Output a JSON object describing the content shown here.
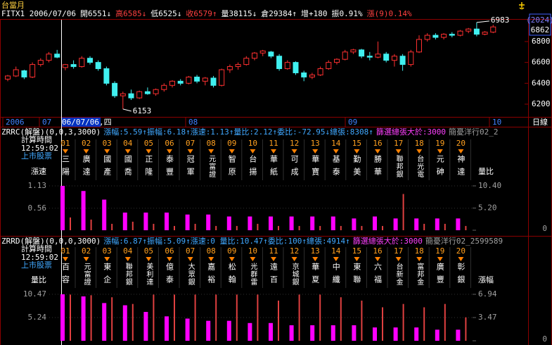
{
  "title": "台當月",
  "quote": [
    {
      "text": "FITX1 2006/07/06",
      "color": "#ffffff"
    },
    {
      "text": "開6551↓",
      "color": "#ffffff"
    },
    {
      "text": "高6585↓",
      "color": "#ff4040"
    },
    {
      "text": "低6525↓",
      "color": "#ffffff"
    },
    {
      "text": "收6579↑",
      "color": "#ff4040"
    },
    {
      "text": "量38115↓",
      "color": "#ffffff"
    },
    {
      "text": "倉29384↑",
      "color": "#ffffff"
    },
    {
      "text": "增+180",
      "color": "#ffffff"
    },
    {
      "text": "振0.91%",
      "color": "#ffffff"
    },
    {
      "text": "漲(9)0.14%",
      "color": "#ff4040"
    }
  ],
  "side_box": [
    "(2024)",
    "6862"
  ],
  "price_chart": {
    "ylim": [
      6085,
      7009
    ],
    "yticks": [
      6800,
      6600,
      6400,
      6200
    ],
    "up_color": "#ff3030",
    "down_color": "#40f0f0",
    "open": [
      6440,
      6470,
      6520,
      6460,
      6580,
      6620,
      6680,
      6551,
      6580,
      6560,
      6640,
      6600,
      6540,
      6400,
      6280,
      6300,
      6260,
      6320,
      6300,
      6340,
      6380,
      6420,
      6400,
      6460,
      6420,
      6450,
      6380,
      6530,
      6560,
      6580,
      6640,
      6690,
      6700,
      6660,
      6540,
      6600,
      6500,
      6460,
      6480,
      6540,
      6600,
      6630,
      6700,
      6720,
      6660,
      6650,
      6680,
      6620,
      6660,
      6580,
      6700,
      6820,
      6860,
      6840,
      6870,
      6860,
      6900,
      6920,
      6870,
      6890
    ],
    "high": [
      6480,
      6560,
      6530,
      6600,
      6640,
      6700,
      6720,
      6585,
      6620,
      6660,
      6660,
      6620,
      6560,
      6420,
      6320,
      6340,
      6330,
      6360,
      6350,
      6400,
      6430,
      6440,
      6470,
      6480,
      6460,
      6470,
      6540,
      6580,
      6600,
      6660,
      6700,
      6720,
      6710,
      6680,
      6620,
      6610,
      6520,
      6500,
      6560,
      6620,
      6640,
      6720,
      6730,
      6730,
      6700,
      6800,
      6700,
      6680,
      6680,
      6720,
      6860,
      6880,
      6880,
      6880,
      6890,
      6910,
      6930,
      6983,
      6900,
      6960
    ],
    "low": [
      6420,
      6460,
      6440,
      6450,
      6560,
      6600,
      6640,
      6525,
      6540,
      6550,
      6580,
      6520,
      6380,
      6260,
      6153,
      6240,
      6250,
      6290,
      6280,
      6320,
      6360,
      6380,
      6390,
      6400,
      6380,
      6360,
      6370,
      6500,
      6530,
      6570,
      6620,
      6660,
      6640,
      6520,
      6530,
      6480,
      6420,
      6440,
      6470,
      6530,
      6580,
      6620,
      6680,
      6640,
      6620,
      6640,
      6600,
      6560,
      6520,
      6560,
      6690,
      6800,
      6820,
      6820,
      6840,
      6850,
      6880,
      6850,
      6860,
      6880
    ],
    "close": [
      6470,
      6530,
      6460,
      6580,
      6620,
      6680,
      6650,
      6579,
      6560,
      6640,
      6600,
      6540,
      6400,
      6280,
      6300,
      6260,
      6320,
      6300,
      6340,
      6380,
      6420,
      6400,
      6460,
      6420,
      6450,
      6380,
      6530,
      6560,
      6580,
      6640,
      6690,
      6710,
      6660,
      6540,
      6600,
      6500,
      6460,
      6480,
      6540,
      6600,
      6630,
      6700,
      6720,
      6660,
      6650,
      6680,
      6620,
      6660,
      6580,
      6700,
      6820,
      6860,
      6840,
      6870,
      6860,
      6900,
      6920,
      6870,
      6890,
      6940
    ],
    "x_labels": [
      "2006",
      "07",
      "06/07/06,四",
      "08",
      "09",
      "10"
    ],
    "period": "日線"
  },
  "panels": [
    {
      "header": [
        {
          "text": "ZRRC(解盤)(0,0,3,3000)",
          "color": "#ffffff"
        },
        {
          "text": "漲幅:5.59↑振幅:6.18↑漲速:1.13↑量比:2.12↑委比:-72.95↓總張:8308↑",
          "color": "#40a8ff"
        },
        {
          "text": "篩選總張大於:3000",
          "color": "#ff40ff"
        },
        {
          "text": "簡憂洋行02_2",
          "color": "#a0a0a0"
        }
      ],
      "time_label": "計算時間",
      "time": "12:59:02",
      "market": "上市股票",
      "left_label": "漲速",
      "right_label": "量比",
      "left_ylim": [
        0,
        1.13
      ],
      "left_yticks": [
        1.13,
        0.56
      ],
      "right_ylim": [
        0,
        10.4
      ],
      "right_yticks": [
        {
          "value": 10.4,
          "label": "10.40"
        },
        {
          "value": 5.2,
          "label": "5.20"
        },
        0
      ],
      "codes": [
        "01",
        "02",
        "03",
        "04",
        "05",
        "06",
        "07",
        "08",
        "09",
        "10",
        "11",
        "12",
        "13",
        "14",
        "15",
        "16",
        "17",
        "18",
        "19",
        "20"
      ],
      "names": [
        "三陽",
        "廣達",
        "國產",
        "國喬",
        "正隆",
        "泰豐",
        "冠軍",
        "元富證",
        "智原",
        "台揚",
        "華紙",
        "可成",
        "華寶",
        "基泰",
        "勤美",
        "勝華",
        "聯邦銀",
        "台光電",
        "元砷",
        "神達"
      ],
      "left_values": [
        1.13,
        1.0,
        0.78,
        0.45,
        0.45,
        0.45,
        0.4,
        0.4,
        0.35,
        0.35,
        0.35,
        0.35,
        0.35,
        0.35,
        0.3,
        0.35,
        0.3,
        0.3,
        0.3,
        0.3
      ],
      "right_values": [
        3.0,
        2.5,
        1.5,
        2.0,
        1.5,
        1.0,
        1.5,
        1.0,
        1.0,
        1.5,
        1.0,
        1.0,
        1.0,
        1.0,
        1.0,
        1.0,
        8.5,
        1.5,
        1.5,
        1.0
      ]
    },
    {
      "header": [
        {
          "text": "ZRRD(解盤)(0,0,0,3000)",
          "color": "#ffffff"
        },
        {
          "text": "漲幅:6.87↑振幅:5.09↑漲速:0 量比:10.47↑委比:100↑總張:4914↑",
          "color": "#40a8ff"
        },
        {
          "text": "篩選總張大於:3000",
          "color": "#ff40ff"
        },
        {
          "text": "簡憂洋行02_2599589",
          "color": "#a0a0a0"
        }
      ],
      "time_label": "計算時間",
      "time": "12:59:02",
      "market": "上市股票",
      "left_label": "量比",
      "right_label": "漲幅",
      "left_ylim": [
        0,
        10.47
      ],
      "left_yticks": [
        10.47,
        5.24
      ],
      "right_ylim": [
        0,
        6.94
      ],
      "right_yticks": [
        6.94,
        3.47,
        0
      ],
      "codes": [
        "01",
        "02",
        "03",
        "04",
        "05",
        "06",
        "07",
        "08",
        "09",
        "10",
        "11",
        "12",
        "13",
        "14",
        "15",
        "16",
        "17",
        "18",
        "19",
        "20"
      ],
      "names": [
        "百容",
        "元富證",
        "東企",
        "聯邦銀",
        "美利達",
        "億泰",
        "大眾銀",
        "嘉裕",
        "松翰",
        "光群雷",
        "遠百",
        "京城銀",
        "華夏",
        "中纖",
        "東聯",
        "六福",
        "台新金",
        "富邦金",
        "廣豐",
        "彰銀"
      ],
      "left_values": [
        10.47,
        10.0,
        8.5,
        8.0,
        6.5,
        5.5,
        5.0,
        4.5,
        4.5,
        4.0,
        4.0,
        3.5,
        3.5,
        3.5,
        3.5,
        3.0,
        3.0,
        3.0,
        2.5,
        2.5
      ],
      "right_values": [
        6.9,
        6.8,
        6.5,
        5.5,
        6.9,
        6.9,
        6.9,
        6.9,
        6.9,
        6.9,
        6.0,
        6.9,
        6.9,
        6.5,
        6.0,
        5.0,
        5.5,
        5.0,
        5.5,
        3.5
      ]
    }
  ]
}
